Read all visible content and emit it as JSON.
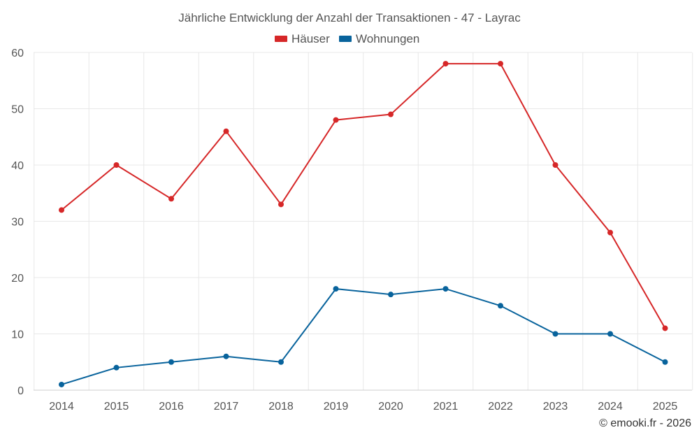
{
  "chart_data": {
    "type": "line",
    "title": "Jährliche Entwicklung der Anzahl der Transaktionen - 47 - Layrac",
    "xlabel": "",
    "ylabel": "",
    "categories": [
      "2014",
      "2015",
      "2016",
      "2017",
      "2018",
      "2019",
      "2020",
      "2021",
      "2022",
      "2023",
      "2024",
      "2025"
    ],
    "ylim": [
      0,
      60
    ],
    "yticks": [
      0,
      10,
      20,
      30,
      40,
      50,
      60
    ],
    "grid": true,
    "legend_position": "top-center",
    "series": [
      {
        "name": "Häuser",
        "color": "#d62728",
        "values": [
          32,
          40,
          34,
          46,
          33,
          48,
          49,
          58,
          58,
          40,
          28,
          11
        ]
      },
      {
        "name": "Wohnungen",
        "color": "#08639c",
        "values": [
          1,
          4,
          5,
          6,
          5,
          18,
          17,
          18,
          15,
          10,
          10,
          5
        ]
      }
    ],
    "credit": "© emooki.fr - 2026"
  }
}
